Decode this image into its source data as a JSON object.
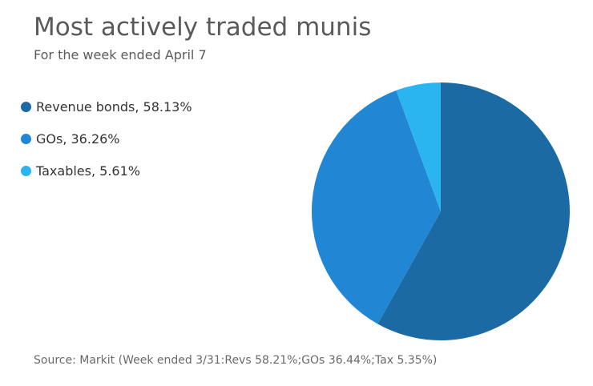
{
  "chart_data": {
    "type": "pie",
    "title": "Most actively traded munis",
    "subtitle": "For the week ended April 7",
    "slices": [
      {
        "label": "Revenue bonds, 58.13%",
        "value": 58.13,
        "color": "#1c6aa3"
      },
      {
        "label": "GOs, 36.26%",
        "value": 36.26,
        "color": "#2187d4"
      },
      {
        "label": "Taxables, 5.61%",
        "value": 5.61,
        "color": "#2ab5f0"
      }
    ],
    "legend_position": "left",
    "source": "Source: Markit (Week ended 3/31:Revs 58.21%;GOs 36.44%;Tax 5.35%)"
  }
}
